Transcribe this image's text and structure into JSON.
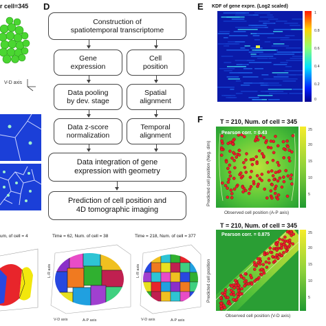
{
  "panel_letters": {
    "d": "D",
    "e": "E",
    "f": "F"
  },
  "left_column": {
    "top_title": "r cell=345",
    "axis_label": "V-D axis",
    "bottom_titles": [
      "um, of cell = 4",
      "Time = 62, Num. of cell = 38",
      "Time = 218, Num. of cell = 377"
    ],
    "axis_labels": [
      "V-D axis",
      "A-P axis",
      "L-R axis",
      "V-D axis",
      "A-P axis",
      "L-R axis"
    ]
  },
  "flowchart": {
    "top": "Construction of\nspatiotemporal transcriptome",
    "left": [
      "Gene\nexpression",
      "Data pooling\nby dev. stage",
      "Data z-score\nnormalization"
    ],
    "right": [
      "Cell\nposition",
      "Spatial\nalignment",
      "Temporal\nalignment"
    ],
    "integration": "Data integration of gene\nexpression with geometry",
    "prediction": "Prediction of cell position and\n4D tomographic imaging"
  },
  "panel_e": {
    "title": "KDF of gene expre. (Log2 scaled)",
    "colorbar_ticks": [
      "1",
      "0.8",
      "0.6",
      "0.4",
      "0.2",
      "0"
    ]
  },
  "panel_f_top": {
    "title": "T = 210, Num. of cell = 345",
    "annotation": "Pearson corr. = 0.43",
    "xlabel": "Observed cell position (A-P axis)",
    "ylabel": "Predicted cell position (Neg. dim)",
    "colorbar_ticks": [
      "25",
      "20",
      "15",
      "10",
      "5"
    ]
  },
  "panel_f_bottom": {
    "title": "T = 210, Num. of cell = 345",
    "annotation": "Pearson corr. = 0.875",
    "xlabel": "Observed cell position (V-D axis)",
    "ylabel": "Predicted cell position",
    "colorbar_ticks": [
      "25",
      "20",
      "15",
      "10",
      "5"
    ]
  },
  "colors": {
    "flow_border": "#444444",
    "heat_bg": "#0a1aa8",
    "field_green": "#3fbf3f",
    "point_red": "#e8202a",
    "cell_green": "#4ad631"
  }
}
